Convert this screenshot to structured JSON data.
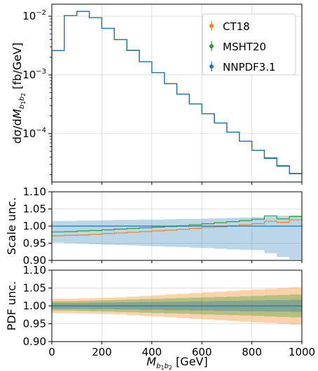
{
  "chart_data": [
    {
      "type": "line",
      "panel": "main",
      "ylabel": "dσ/dM_{b1b2}  [fb/GeV]",
      "yscale": "log",
      "ylim": [
        1.5e-05,
        0.016
      ],
      "xlim": [
        0,
        1000
      ],
      "yticks": [
        {
          "value": 0.01,
          "mant": "10",
          "exp": "−2"
        },
        {
          "value": 0.001,
          "mant": "10",
          "exp": "−3"
        },
        {
          "value": 0.0001,
          "mant": "10",
          "exp": "−4"
        }
      ],
      "grid": true,
      "legend_position": "top-right",
      "bin_edges": [
        0,
        50,
        100,
        150,
        200,
        250,
        300,
        350,
        400,
        450,
        500,
        550,
        600,
        650,
        700,
        750,
        800,
        850,
        900,
        950,
        1000
      ],
      "series": [
        {
          "name": "CT18",
          "color": "#ff7f0e",
          "values": [
            0.0026,
            0.0102,
            0.0121,
            0.0094,
            0.0062,
            0.004,
            0.00262,
            0.00168,
            0.00109,
            0.00071,
            0.00047,
            0.00032,
            0.000218,
            0.000152,
            0.000106,
            7.45e-05,
            5.2e-05,
            3.83e-05,
            2.82e-05,
            2.09e-05
          ]
        },
        {
          "name": "MSHT20",
          "color": "#2ca02c",
          "values": [
            0.0026,
            0.0102,
            0.0121,
            0.0094,
            0.0062,
            0.004,
            0.00262,
            0.00168,
            0.00109,
            0.00071,
            0.00047,
            0.00032,
            0.000218,
            0.000152,
            0.000106,
            7.45e-05,
            5.2e-05,
            3.88e-05,
            2.85e-05,
            2.11e-05
          ]
        },
        {
          "name": "NNPDF3.1",
          "color": "#1f77b4",
          "values": [
            0.0026,
            0.0102,
            0.0121,
            0.0094,
            0.0062,
            0.004,
            0.00262,
            0.00168,
            0.00109,
            0.00071,
            0.00047,
            0.00032,
            0.000218,
            0.000152,
            0.000106,
            7.45e-05,
            5.2e-05,
            3.78e-05,
            2.78e-05,
            2.07e-05
          ]
        }
      ]
    },
    {
      "type": "area",
      "panel": "scale",
      "ylabel": "Scale unc.",
      "ylim": [
        0.9,
        1.1
      ],
      "xlim": [
        0,
        1000
      ],
      "yticks": [
        "0.90",
        "0.95",
        "1.00",
        "1.05",
        "1.10"
      ],
      "grid": true,
      "bin_edges": [
        0,
        50,
        100,
        150,
        200,
        250,
        300,
        350,
        400,
        450,
        500,
        550,
        600,
        650,
        700,
        750,
        800,
        850,
        900,
        950,
        1000
      ],
      "band": {
        "name": "NNPDF3.1",
        "color": "#1f77b4",
        "upper": [
          1.015,
          1.015,
          1.016,
          1.016,
          1.017,
          1.018,
          1.018,
          1.019,
          1.019,
          1.02,
          1.021,
          1.021,
          1.022,
          1.023,
          1.024,
          1.025,
          1.026,
          1.028,
          1.03,
          1.031
        ],
        "lower": [
          0.952,
          0.95,
          0.949,
          0.947,
          0.946,
          0.945,
          0.944,
          0.942,
          0.941,
          0.94,
          0.939,
          0.937,
          0.936,
          0.934,
          0.932,
          0.931,
          0.93,
          0.921,
          0.91,
          0.903
        ]
      },
      "series": [
        {
          "name": "CT18",
          "color": "#ff7f0e",
          "values": [
            0.972,
            0.973,
            0.974,
            0.976,
            0.978,
            0.98,
            0.982,
            0.984,
            0.986,
            0.988,
            0.99,
            0.993,
            0.996,
            0.998,
            1.001,
            1.004,
            1.007,
            1.014,
            1.011,
            1.018
          ]
        },
        {
          "name": "MSHT20",
          "color": "#2ca02c",
          "values": [
            0.983,
            0.984,
            0.986,
            0.987,
            0.989,
            0.991,
            0.993,
            0.995,
            0.997,
            0.999,
            1.001,
            1.004,
            1.007,
            1.01,
            1.013,
            1.016,
            1.02,
            1.03,
            1.021,
            1.028
          ]
        },
        {
          "name": "NNPDF3.1",
          "color": "#1f77b4",
          "values": [
            1.0,
            1.0,
            1.0,
            1.0,
            1.0,
            1.0,
            1.0,
            1.0,
            1.0,
            1.0,
            1.0,
            1.0,
            1.0,
            1.0,
            1.0,
            1.0,
            1.0,
            1.0,
            1.0,
            1.0
          ]
        }
      ]
    },
    {
      "type": "area",
      "panel": "pdf",
      "ylabel": "PDF unc.",
      "xlabel": "M_{b1b2}  [GeV]",
      "ylim": [
        0.9,
        1.1
      ],
      "xlim": [
        0,
        1000
      ],
      "yticks": [
        "0.90",
        "0.95",
        "1.00",
        "1.05",
        "1.10"
      ],
      "xticks": [
        "0",
        "200",
        "400",
        "600",
        "800",
        "1000"
      ],
      "grid": true,
      "bin_edges": [
        0,
        50,
        100,
        150,
        200,
        250,
        300,
        350,
        400,
        450,
        500,
        550,
        600,
        650,
        700,
        750,
        800,
        850,
        900,
        950,
        1000
      ],
      "bands": [
        {
          "name": "CT18",
          "color": "#ff7f0e",
          "half_width": [
            0.02,
            0.02,
            0.021,
            0.022,
            0.023,
            0.024,
            0.026,
            0.028,
            0.03,
            0.032,
            0.034,
            0.036,
            0.038,
            0.04,
            0.042,
            0.044,
            0.046,
            0.048,
            0.05,
            0.052
          ]
        },
        {
          "name": "MSHT20",
          "color": "#2ca02c",
          "half_width": [
            0.013,
            0.013,
            0.014,
            0.015,
            0.016,
            0.017,
            0.018,
            0.019,
            0.02,
            0.021,
            0.022,
            0.023,
            0.024,
            0.025,
            0.026,
            0.027,
            0.028,
            0.03,
            0.031,
            0.032
          ]
        },
        {
          "name": "NNPDF3.1",
          "color": "#1f77b4",
          "half_width": [
            0.008,
            0.008,
            0.008,
            0.009,
            0.009,
            0.01,
            0.01,
            0.011,
            0.011,
            0.012,
            0.012,
            0.013,
            0.013,
            0.014,
            0.014,
            0.015,
            0.015,
            0.016,
            0.016,
            0.017
          ]
        }
      ]
    }
  ]
}
